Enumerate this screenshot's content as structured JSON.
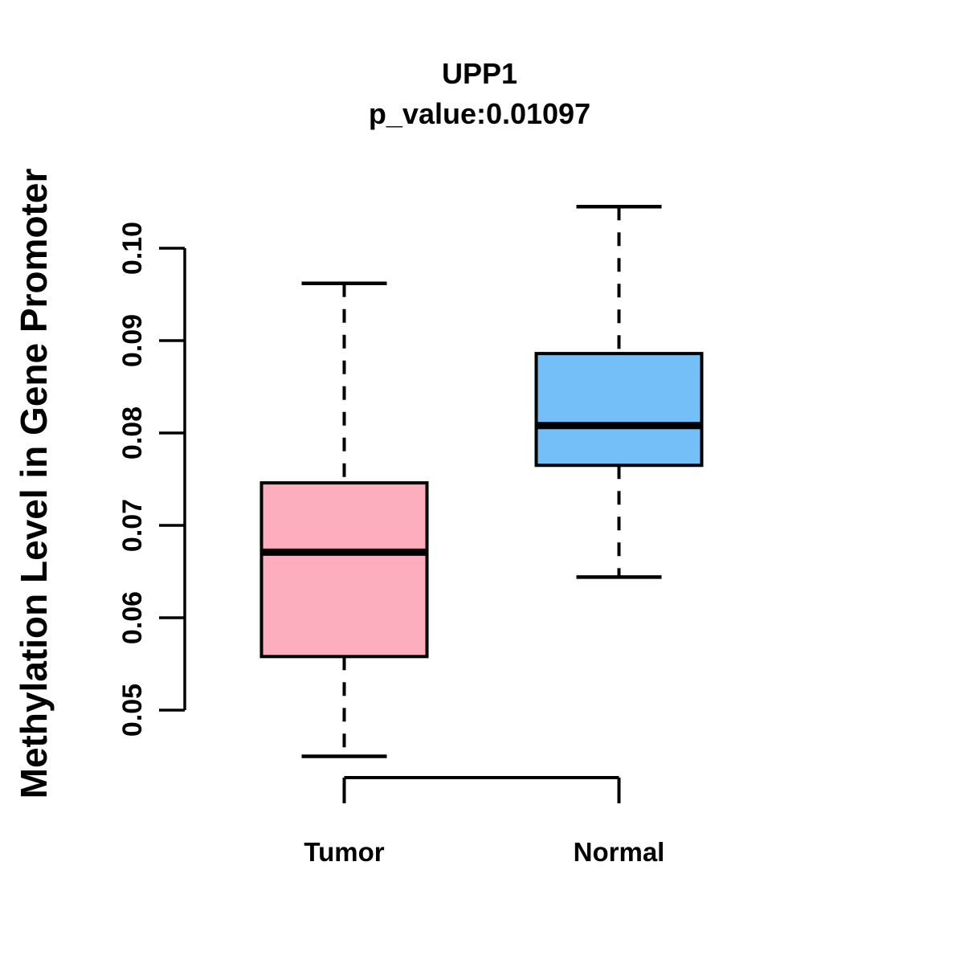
{
  "chart_data": {
    "type": "boxplot",
    "title": "UPP1",
    "subtitle": "p_value:0.01097",
    "ylabel": "Methylation Level in Gene Promoter",
    "xlabel": "",
    "categories": [
      "Tumor",
      "Normal"
    ],
    "y_axis": {
      "tick_labels": [
        "0.05",
        "0.06",
        "0.07",
        "0.08",
        "0.09",
        "0.10"
      ],
      "tick_values": [
        0.05,
        0.06,
        0.07,
        0.08,
        0.09,
        0.1
      ],
      "ylim": [
        0.05,
        0.1
      ]
    },
    "series": [
      {
        "name": "Tumor",
        "box_color": "#FCAEBF",
        "whisker_low": 0.045,
        "q1": 0.0558,
        "median": 0.0671,
        "q3": 0.0746,
        "whisker_high": 0.0962
      },
      {
        "name": "Normal",
        "box_color": "#74BFF7",
        "whisker_low": 0.0644,
        "q1": 0.0765,
        "median": 0.0808,
        "q3": 0.0886,
        "whisker_high": 0.1045
      }
    ],
    "line_color": "#000000",
    "background_color": "#FFFFFF",
    "grid": false,
    "legend": "none"
  }
}
